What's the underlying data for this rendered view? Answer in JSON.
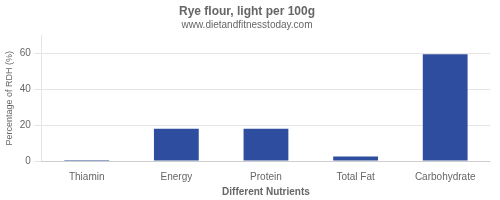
{
  "chart_data": {
    "type": "bar",
    "title": "Rye flour, light per 100g",
    "subtitle": "www.dietandfitnesstoday.com",
    "xlabel": "Different Nutrients",
    "ylabel": "Percentage of RDH (%)",
    "categories": [
      "Thiamin",
      "Energy",
      "Protein",
      "Total Fat",
      "Carbohydrate"
    ],
    "values": [
      0.5,
      18,
      18,
      2.5,
      59.5
    ],
    "color": "#2e4d9e",
    "ylim": [
      0,
      70
    ],
    "yticks": [
      0,
      20,
      40,
      60
    ],
    "grid": true
  }
}
